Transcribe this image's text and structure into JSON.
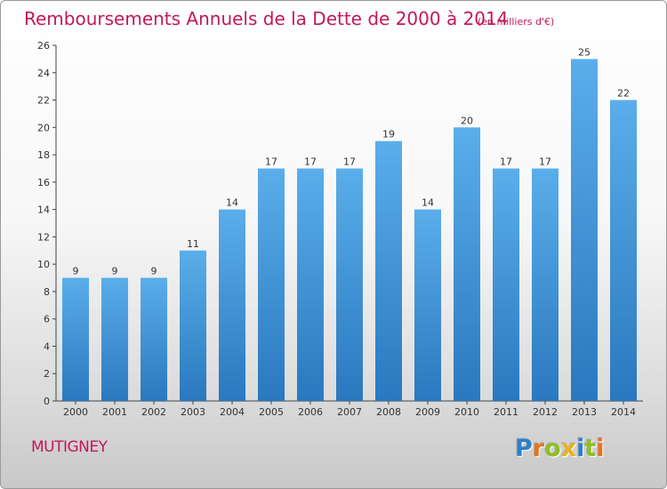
{
  "chart_data": {
    "type": "bar",
    "title": "Remboursements Annuels de la Dette de 2000 à 2014",
    "subtitle": "(en milliers d'€)",
    "categories": [
      "2000",
      "2001",
      "2002",
      "2003",
      "2004",
      "2005",
      "2006",
      "2007",
      "2008",
      "2009",
      "2010",
      "2011",
      "2012",
      "2013",
      "2014"
    ],
    "values": [
      9,
      9,
      9,
      11,
      14,
      17,
      17,
      17,
      19,
      14,
      20,
      17,
      17,
      25,
      22
    ],
    "xlabel": "",
    "ylabel": "",
    "ylim": [
      0,
      26
    ],
    "yticks": [
      0,
      2,
      4,
      6,
      8,
      10,
      12,
      14,
      16,
      18,
      20,
      22,
      24,
      26
    ],
    "grid": false,
    "bar_color": "#3d8fd6"
  },
  "footer": {
    "commune": "MUTIGNEY",
    "logo_letters": [
      {
        "ch": "P",
        "color": "#2f80c9"
      },
      {
        "ch": "r",
        "color": "#e8731b"
      },
      {
        "ch": "o",
        "color": "#8cbf26"
      },
      {
        "ch": "x",
        "color": "#e8b31b"
      },
      {
        "ch": "i",
        "color": "#2f80c9"
      },
      {
        "ch": "t",
        "color": "#8cbf26"
      },
      {
        "ch": "i",
        "color": "#e8731b"
      }
    ]
  }
}
